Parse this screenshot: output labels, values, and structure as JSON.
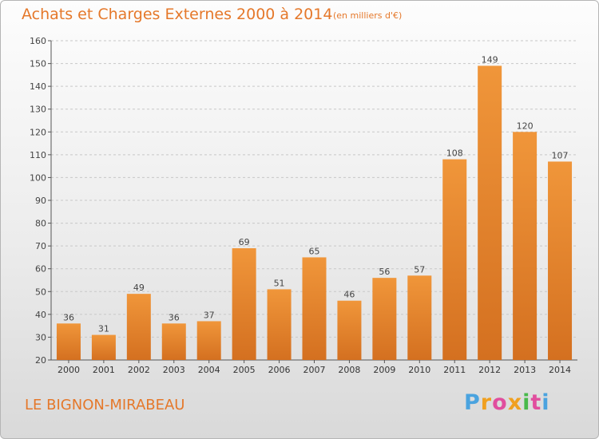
{
  "header": {
    "title": "Achats et Charges Externes 2000 à 2014",
    "subtitle": "(en milliers d'€)"
  },
  "footer": {
    "commune": "LE BIGNON-MIRABEAU",
    "logo": {
      "letters": [
        "P",
        "r",
        "o",
        "x",
        "i",
        "t",
        "i"
      ],
      "colors": [
        "#4aa3df",
        "#f0a020",
        "#e14e9e",
        "#f0a020",
        "#48b94a",
        "#e14e9e",
        "#4aa3df"
      ]
    }
  },
  "chart_data": {
    "type": "bar",
    "categories": [
      "2000",
      "2001",
      "2002",
      "2003",
      "2004",
      "2005",
      "2006",
      "2007",
      "2008",
      "2009",
      "2010",
      "2011",
      "2012",
      "2013",
      "2014"
    ],
    "values": [
      36,
      31,
      49,
      36,
      37,
      69,
      51,
      65,
      46,
      56,
      57,
      108,
      149,
      120,
      107
    ],
    "ylim": [
      20,
      160
    ],
    "yticks": [
      20,
      30,
      40,
      50,
      60,
      70,
      80,
      90,
      100,
      110,
      120,
      130,
      140,
      150,
      160
    ],
    "grid": "horizontal dashed",
    "bar_color": "#f0963a",
    "bar_color_dark": "#d47020"
  }
}
